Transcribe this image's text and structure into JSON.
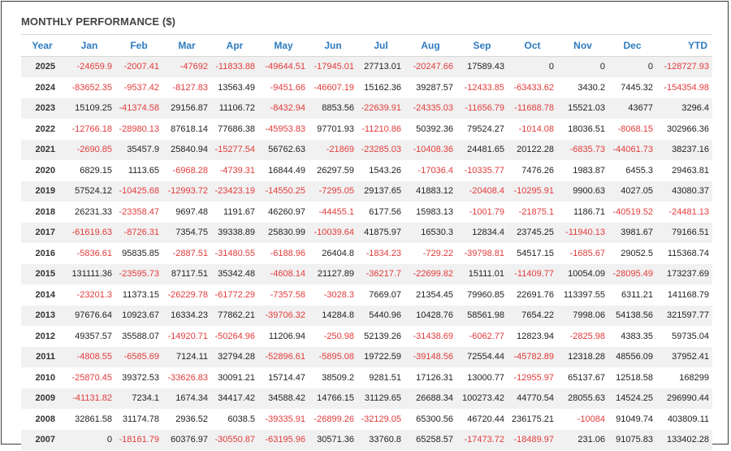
{
  "widget": {
    "title": "MONTHLY PERFORMANCE ($)",
    "columns": [
      "Year",
      "Jan",
      "Feb",
      "Mar",
      "Apr",
      "May",
      "Jun",
      "Jul",
      "Aug",
      "Sep",
      "Oct",
      "Nov",
      "Dec",
      "YTD"
    ],
    "rows": [
      [
        "2025",
        "-24659.9",
        "-2007.41",
        "-47692",
        "-11833.88",
        "-49644.51",
        "-17945.01",
        "27713.01",
        "-20247.66",
        "17589.43",
        "0",
        "0",
        "0",
        "-128727.93"
      ],
      [
        "2024",
        "-83652.35",
        "-9537.42",
        "-8127.83",
        "13563.49",
        "-9451.66",
        "-46607.19",
        "15162.36",
        "39287.57",
        "-12433.85",
        "-63433.62",
        "3430.2",
        "7445.32",
        "-154354.98"
      ],
      [
        "2023",
        "15109.25",
        "-41374.58",
        "29156.87",
        "11106.72",
        "-8432.94",
        "8853.56",
        "-22639.91",
        "-24335.03",
        "-11656.79",
        "-11688.78",
        "15521.03",
        "43677",
        "3296.4"
      ],
      [
        "2022",
        "-12766.18",
        "-28980.13",
        "87618.14",
        "77686.38",
        "-45953.83",
        "97701.93",
        "-11210.86",
        "50392.36",
        "79524.27",
        "-1014.08",
        "18036.51",
        "-8068.15",
        "302966.36"
      ],
      [
        "2021",
        "-2690.85",
        "35457.9",
        "25840.94",
        "-15277.54",
        "56762.63",
        "-21869",
        "-23285.03",
        "-10408.36",
        "24481.65",
        "20122.28",
        "-6835.73",
        "-44061.73",
        "38237.16"
      ],
      [
        "2020",
        "6829.15",
        "1113.65",
        "-6968.28",
        "-4739.31",
        "16844.49",
        "26297.59",
        "1543.26",
        "-17036.4",
        "-10335.77",
        "7476.26",
        "1983.87",
        "6455.3",
        "29463.81"
      ],
      [
        "2019",
        "57524.12",
        "-10425.68",
        "-12993.72",
        "-23423.19",
        "-14550.25",
        "-7295.05",
        "29137.65",
        "41883.12",
        "-20408.4",
        "-10295.91",
        "9900.63",
        "4027.05",
        "43080.37"
      ],
      [
        "2018",
        "26231.33",
        "-23358.47",
        "9697.48",
        "1191.67",
        "46260.97",
        "-44455.1",
        "6177.56",
        "15983.13",
        "-1001.79",
        "-21875.1",
        "1186.71",
        "-40519.52",
        "-24481.13"
      ],
      [
        "2017",
        "-61619.63",
        "-8726.31",
        "7354.75",
        "39338.89",
        "25830.99",
        "-10039.64",
        "41875.97",
        "16530.3",
        "12834.4",
        "23745.25",
        "-11940.13",
        "3981.67",
        "79166.51"
      ],
      [
        "2016",
        "-5836.61",
        "95835.85",
        "-2887.51",
        "-31480.55",
        "-6188.96",
        "26404.8",
        "-1834.23",
        "-729.22",
        "-39798.81",
        "54517.15",
        "-1685.67",
        "29052.5",
        "115368.74"
      ],
      [
        "2015",
        "131111.36",
        "-23595.73",
        "87117.51",
        "35342.48",
        "-4608.14",
        "21127.89",
        "-36217.7",
        "-22699.82",
        "15111.01",
        "-11409.77",
        "10054.09",
        "-28095.49",
        "173237.69"
      ],
      [
        "2014",
        "-23201.3",
        "11373.15",
        "-26229.78",
        "-61772.29",
        "-7357.58",
        "-3028.3",
        "7669.07",
        "21354.45",
        "79960.85",
        "22691.76",
        "113397.55",
        "6311.21",
        "141168.79"
      ],
      [
        "2013",
        "97676.64",
        "10923.67",
        "16334.23",
        "77862.21",
        "-39706.32",
        "14284.8",
        "5440.96",
        "10428.76",
        "58561.98",
        "7654.22",
        "7998.06",
        "54138.56",
        "321597.77"
      ],
      [
        "2012",
        "49357.57",
        "35588.07",
        "-14920.71",
        "-50264.96",
        "11206.94",
        "-250.98",
        "52139.26",
        "-31438.69",
        "-6062.77",
        "12823.94",
        "-2825.98",
        "4383.35",
        "59735.04"
      ],
      [
        "2011",
        "-4808.55",
        "-6585.69",
        "7124.11",
        "32794.28",
        "-52896.61",
        "-5895.08",
        "19722.59",
        "-39148.56",
        "72554.44",
        "-45782.89",
        "12318.28",
        "48556.09",
        "37952.41"
      ],
      [
        "2010",
        "-25870.45",
        "39372.53",
        "-33626.83",
        "30091.21",
        "15714.47",
        "38509.2",
        "9281.51",
        "17126.31",
        "13000.77",
        "-12955.97",
        "65137.67",
        "12518.58",
        "168299"
      ],
      [
        "2009",
        "-41131.82",
        "7234.1",
        "1674.34",
        "34417.42",
        "34588.42",
        "14766.15",
        "31129.65",
        "26688.34",
        "100273.42",
        "44770.54",
        "28055.63",
        "14524.25",
        "296990.44"
      ],
      [
        "2008",
        "32861.58",
        "31174.78",
        "2936.52",
        "6038.5",
        "-39335.91",
        "-26899.26",
        "-32129.05",
        "65300.56",
        "46720.44",
        "236175.21",
        "-10084",
        "91049.74",
        "403809.11"
      ],
      [
        "2007",
        "0",
        "-18161.79",
        "60376.97",
        "-30550.87",
        "-63195.96",
        "30571.36",
        "33760.8",
        "65258.57",
        "-17473.72",
        "-18489.97",
        "231.06",
        "91075.83",
        "133402.28"
      ]
    ]
  },
  "colors": {
    "header_text": "#2f7bc0",
    "negative": "#e23b3b",
    "positive": "#222222",
    "stripe": "#f1f1f1"
  }
}
